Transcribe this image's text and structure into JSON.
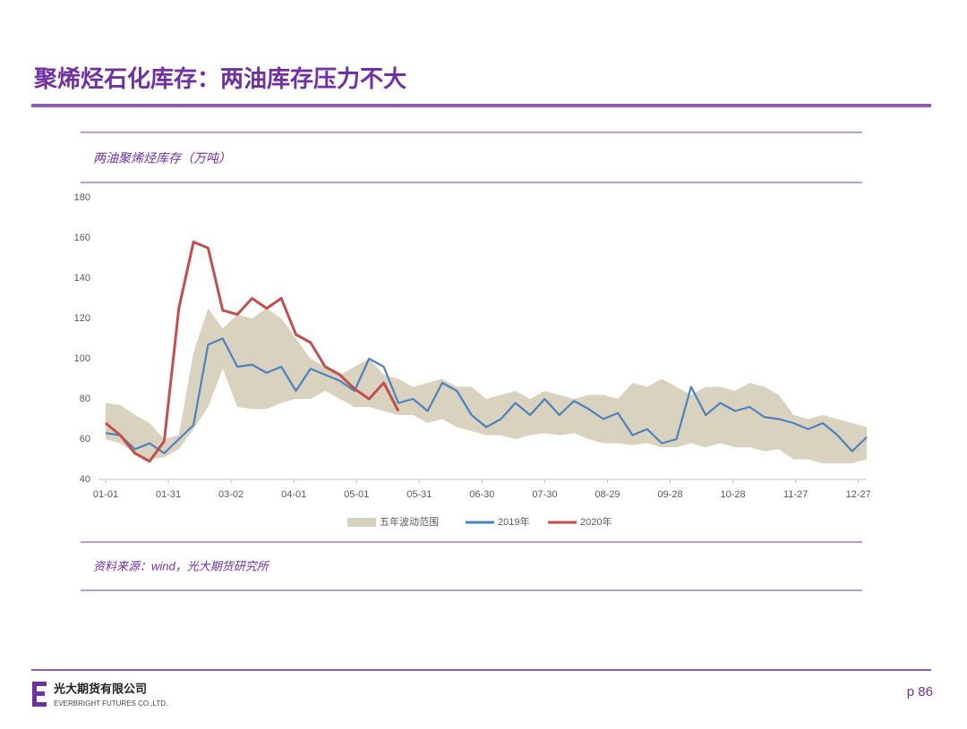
{
  "header": {
    "title": "聚烯烃石化库存：两油库存压力不大"
  },
  "chart_data": {
    "type": "line",
    "title": "两油聚烯烃库存（万吨）",
    "x": [
      "01-01",
      "01-08",
      "01-15",
      "01-22",
      "01-29",
      "02-05",
      "02-12",
      "02-19",
      "02-26",
      "03-05",
      "03-12",
      "03-19",
      "03-26",
      "04-02",
      "04-09",
      "04-16",
      "04-23",
      "04-30",
      "05-07",
      "05-14",
      "05-21",
      "05-28",
      "06-04",
      "06-11",
      "06-18",
      "06-25",
      "07-02",
      "07-09",
      "07-16",
      "07-23",
      "07-30",
      "08-06",
      "08-13",
      "08-20",
      "08-27",
      "09-03",
      "09-10",
      "09-17",
      "09-24",
      "10-01",
      "10-08",
      "10-15",
      "10-22",
      "10-29",
      "11-05",
      "11-12",
      "11-19",
      "11-26",
      "12-03",
      "12-10",
      "12-17",
      "12-24",
      "12-31"
    ],
    "series": [
      {
        "name": "五年波动范围",
        "type": "band",
        "color": "#d9d2bf",
        "low": [
          60,
          58,
          53,
          50,
          51,
          55,
          65,
          76,
          95,
          76,
          75,
          75,
          78,
          80,
          80,
          84,
          80,
          76,
          76,
          74,
          72,
          72,
          68,
          70,
          66,
          64,
          62,
          62,
          60,
          62,
          63,
          62,
          63,
          60,
          58,
          58,
          57,
          58,
          56,
          56,
          58,
          56,
          58,
          56,
          56,
          54,
          55,
          50,
          50,
          48,
          48,
          48,
          50
        ],
        "values": [
          78,
          77,
          72,
          68,
          60,
          62,
          103,
          125,
          115,
          122,
          120,
          125,
          120,
          110,
          100,
          96,
          92,
          96,
          100,
          92,
          90,
          86,
          88,
          90,
          86,
          86,
          80,
          82,
          84,
          80,
          84,
          82,
          80,
          82,
          82,
          80,
          88,
          86,
          90,
          86,
          82,
          86,
          86,
          84,
          88,
          86,
          82,
          72,
          70,
          72,
          70,
          68,
          66
        ]
      },
      {
        "name": "2019年",
        "color": "#4f81bd",
        "values": [
          63,
          62,
          55,
          58,
          53,
          60,
          67,
          107,
          110,
          96,
          97,
          93,
          96,
          84,
          95,
          92,
          89,
          84,
          100,
          96,
          78,
          80,
          74,
          88,
          84,
          72,
          66,
          70,
          78,
          72,
          80,
          72,
          79,
          75,
          70,
          73,
          62,
          65,
          58,
          60,
          86,
          72,
          78,
          74,
          76,
          71,
          70,
          68,
          65,
          68,
          62,
          54,
          61
        ]
      },
      {
        "name": "2020年",
        "color": "#c0504d",
        "values": [
          68,
          62,
          53,
          49,
          59,
          125,
          158,
          155,
          124,
          122,
          130,
          125,
          130,
          112,
          108,
          96,
          92,
          85,
          80,
          88,
          74,
          null,
          null,
          null,
          null,
          null,
          null,
          null,
          null,
          null,
          null,
          null,
          null,
          null,
          null,
          null,
          null,
          null,
          null,
          null,
          null,
          null,
          null,
          null,
          null,
          null,
          null,
          null,
          null,
          null,
          null,
          null,
          null
        ]
      }
    ],
    "ylim": [
      40,
      180
    ],
    "yticks": [
      40,
      60,
      80,
      100,
      120,
      140,
      160,
      180
    ],
    "xlim": [
      "01-01",
      "12-31"
    ],
    "xticks": [
      "01-01",
      "01-31",
      "03-02",
      "04-01",
      "05-01",
      "05-31",
      "06-30",
      "07-30",
      "08-29",
      "09-28",
      "10-28",
      "11-27",
      "12-27"
    ],
    "legend": "bottom",
    "source": "资料来源：wind，光大期货研究所"
  },
  "footer": {
    "company_cn": "光大期货有限公司",
    "company_en": "EVERBRIGHT FUTURES CO.,LTD.",
    "page": "p 86"
  }
}
